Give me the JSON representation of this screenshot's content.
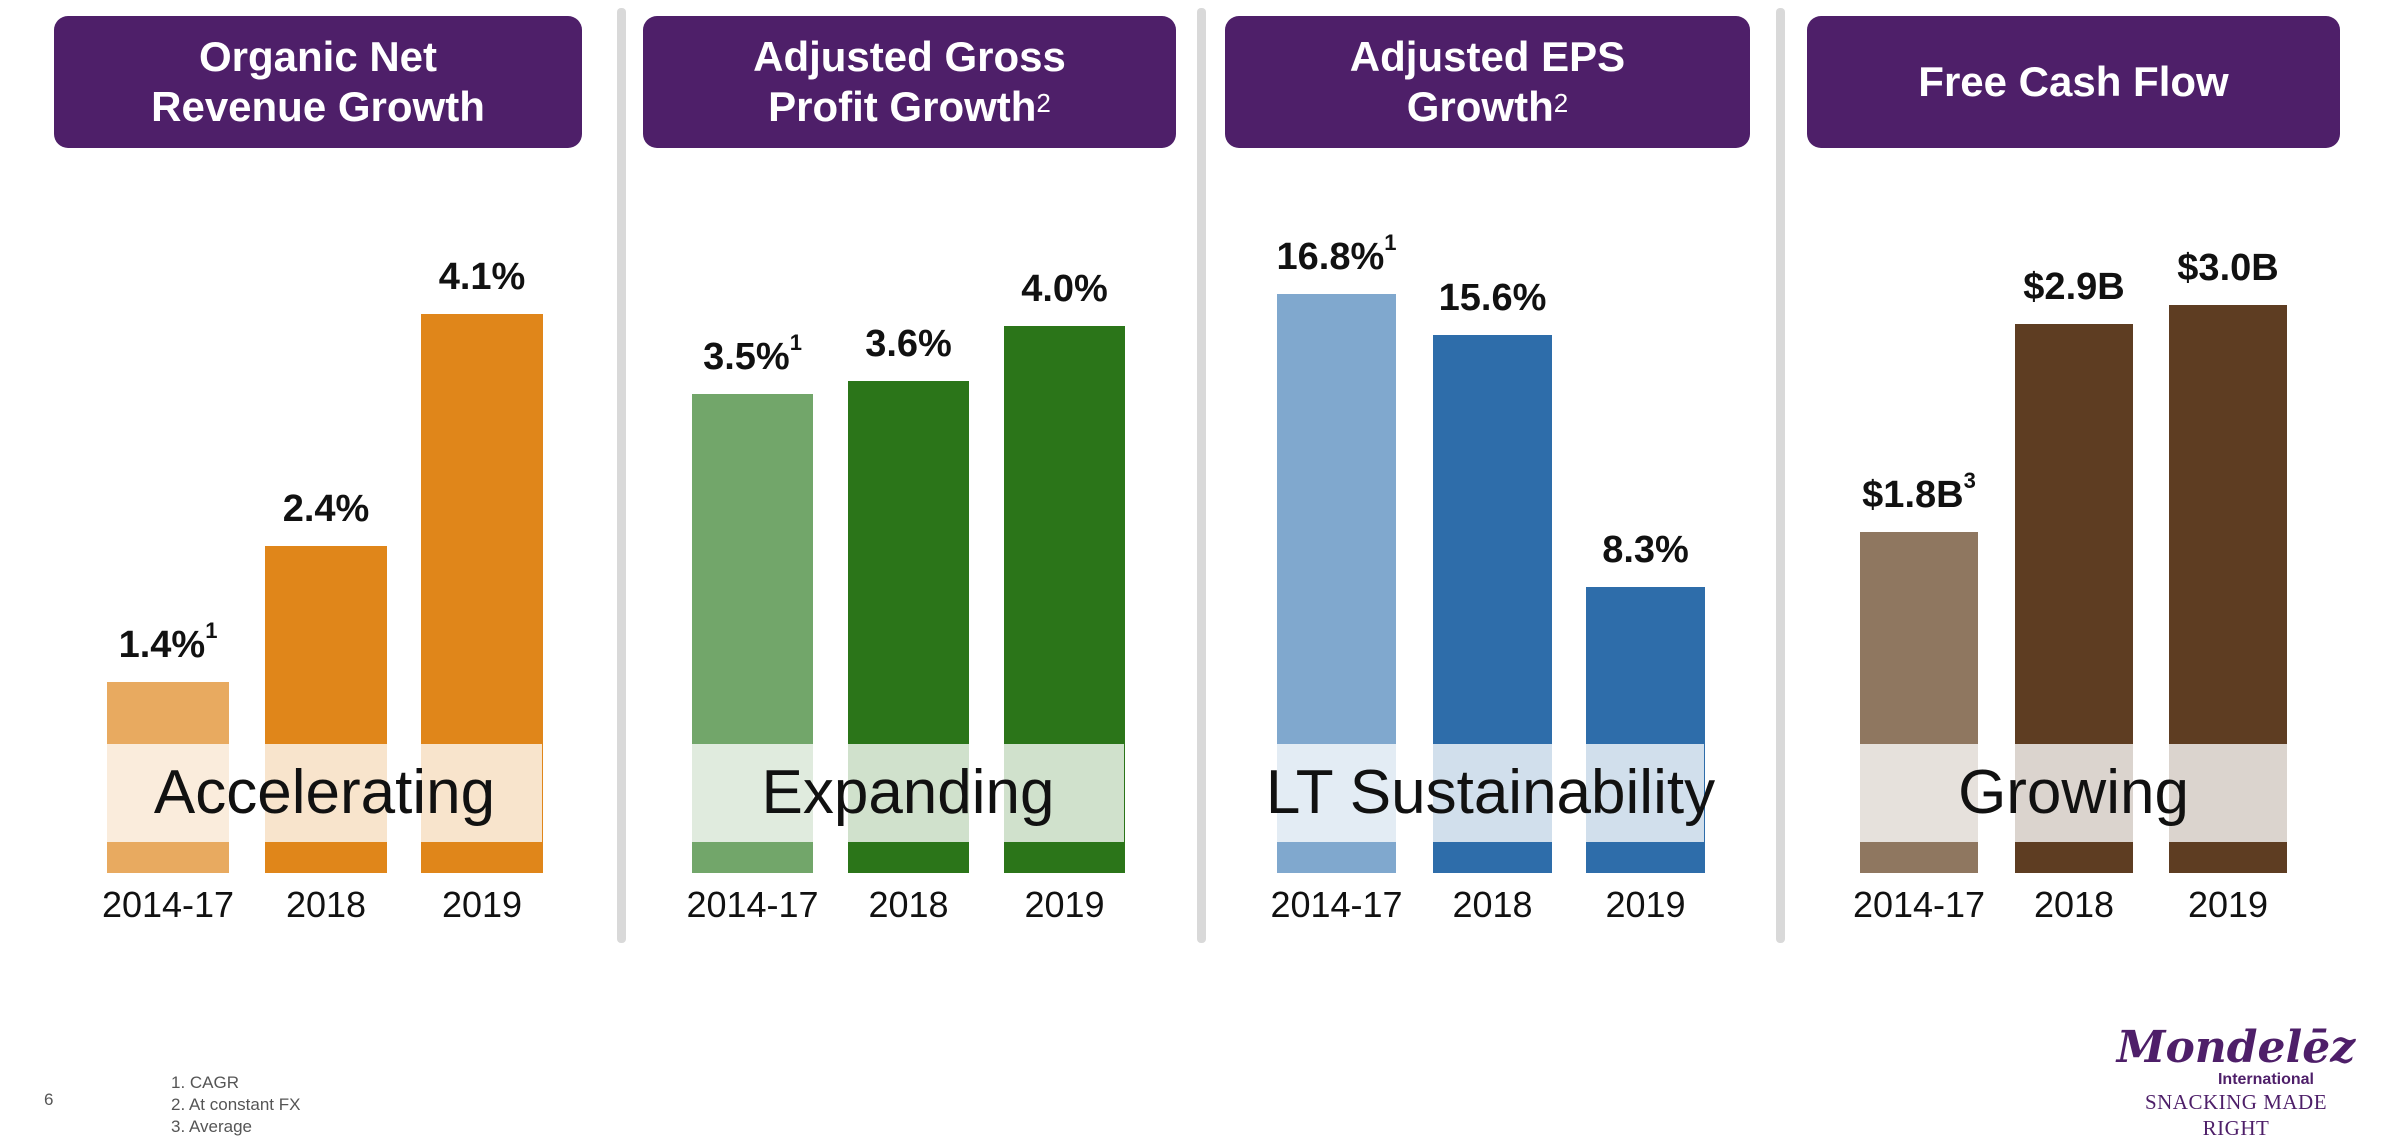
{
  "chart_data": [
    {
      "type": "bar",
      "title": "Organic Net Revenue Growth",
      "title_sup": "",
      "categories": [
        "2014-17",
        "2018",
        "2019"
      ],
      "values": [
        1.4,
        2.4,
        4.1
      ],
      "labels": [
        "1.4%",
        "2.4%",
        "4.1%"
      ],
      "label_sups": [
        "1",
        "",
        ""
      ],
      "colors": [
        "#E8AA60",
        "#E0861A",
        "#E0861A"
      ],
      "overlay_text": "Accelerating"
    },
    {
      "type": "bar",
      "title": "Adjusted Gross Profit Growth",
      "title_sup": "2",
      "categories": [
        "2014-17",
        "2018",
        "2019"
      ],
      "values": [
        3.5,
        3.6,
        4.0
      ],
      "labels": [
        "3.5%",
        "3.6%",
        "4.0%"
      ],
      "label_sups": [
        "1",
        "",
        ""
      ],
      "colors": [
        "#72A66A",
        "#2B7519",
        "#2B7519"
      ],
      "overlay_text": "Expanding"
    },
    {
      "type": "bar",
      "title": "Adjusted EPS Growth",
      "title_sup": "2",
      "categories": [
        "2014-17",
        "2018",
        "2019"
      ],
      "values": [
        16.8,
        15.6,
        8.3
      ],
      "labels": [
        "16.8%",
        "15.6%",
        "8.3%"
      ],
      "label_sups": [
        "1",
        "",
        ""
      ],
      "colors": [
        "#80A8CE",
        "#2E6DAA",
        "#2E6DAA"
      ],
      "overlay_text": "LT Sustainability"
    },
    {
      "type": "bar",
      "title": "Free Cash Flow",
      "title_sup": "",
      "categories": [
        "2014-17",
        "2018",
        "2019"
      ],
      "values": [
        1.8,
        2.9,
        3.0
      ],
      "labels": [
        "$1.8B",
        "$2.9B",
        "$3.0B"
      ],
      "label_sups": [
        "3",
        "",
        ""
      ],
      "colors": [
        "#8F7760",
        "#5E3D22",
        "#5E3D22"
      ],
      "overlay_text": "Growing"
    }
  ],
  "footer": {
    "page_number": "6",
    "notes": [
      "1. CAGR",
      "2. At constant FX",
      "3. Average"
    ]
  },
  "logo": {
    "brand": "Mondelēz",
    "sub": "International",
    "tagline": "SNACKING MADE RIGHT"
  },
  "colors": {
    "header": "#4E1F69"
  }
}
